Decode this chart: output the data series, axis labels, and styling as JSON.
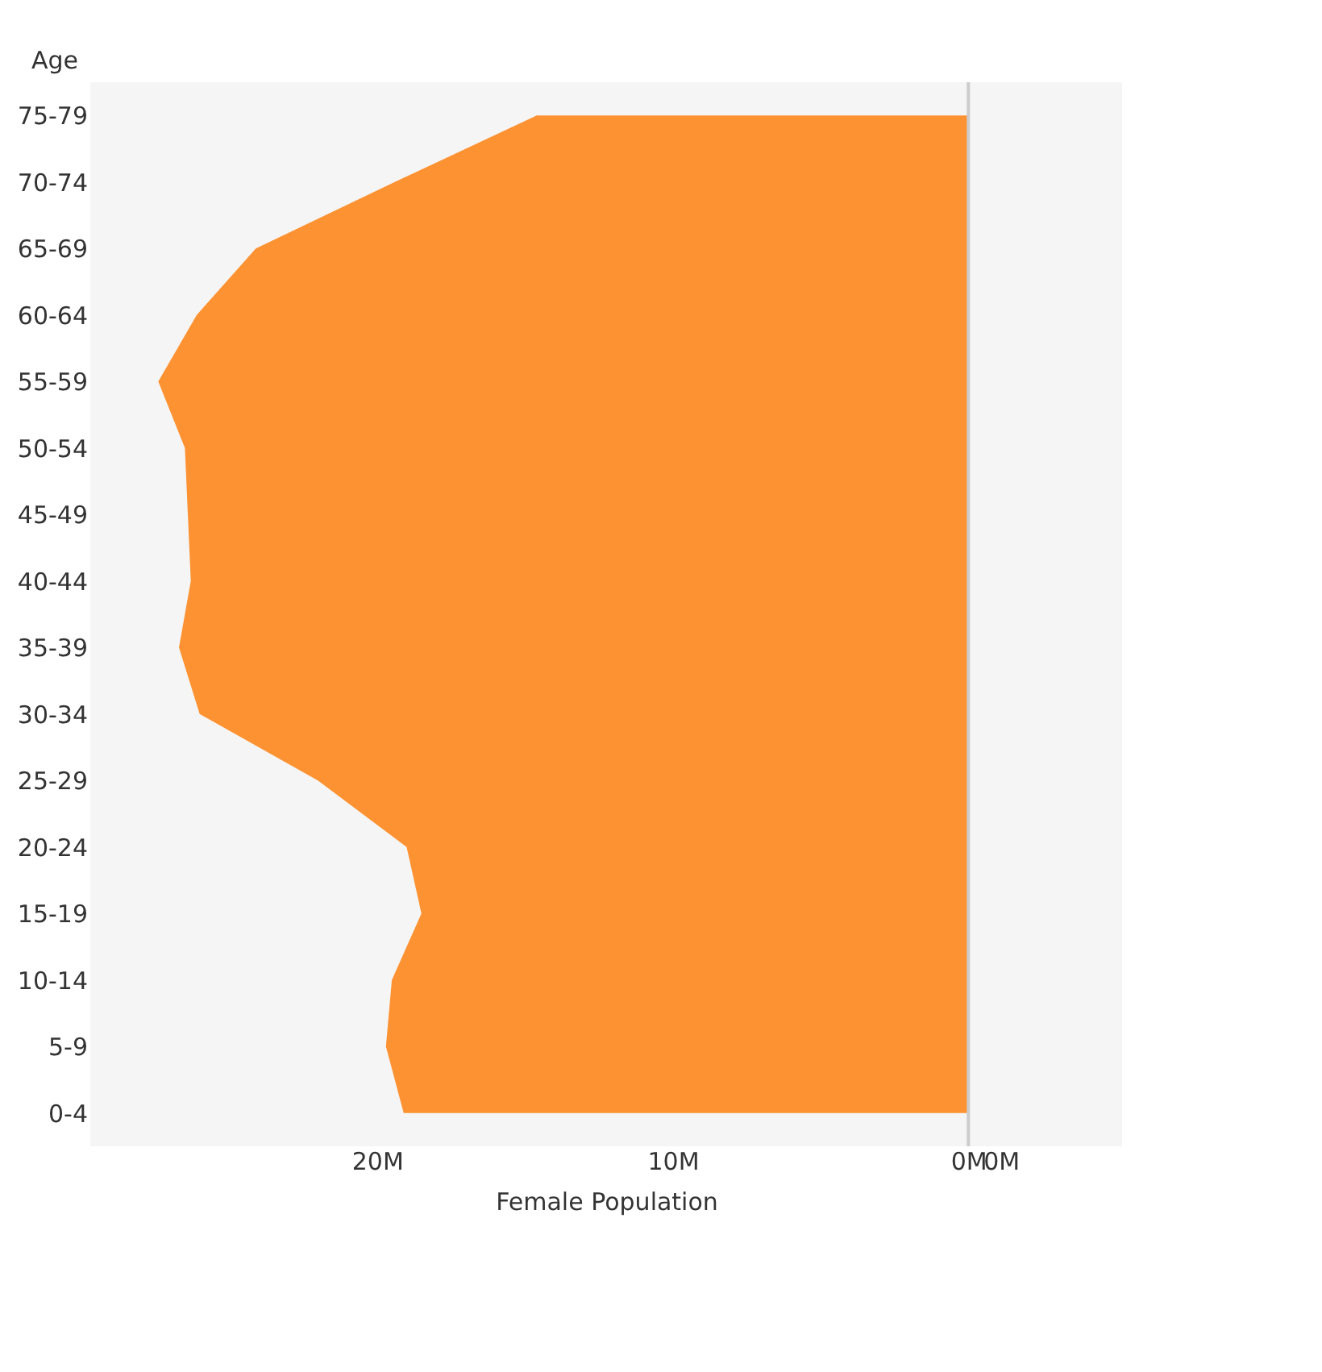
{
  "chart_data": {
    "type": "area",
    "orientation": "horizontal",
    "xlabel": "Female Population",
    "ylabel": "Age",
    "categories": [
      "75-79",
      "70-74",
      "65-69",
      "60-64",
      "55-59",
      "50-54",
      "45-49",
      "40-44",
      "35-39",
      "30-34",
      "25-29",
      "20-24",
      "15-19",
      "10-14",
      "5-9",
      "0-4"
    ],
    "series": [
      {
        "color": "#fd9232",
        "values": [
          14.6,
          19.4,
          24.1,
          26.1,
          27.4,
          26.5,
          26.4,
          26.3,
          26.7,
          26.0,
          22.0,
          19.0,
          18.5,
          19.5,
          19.7,
          19.1
        ]
      }
    ],
    "xlim": [
      29.7,
      -5.2
    ],
    "xticks": [
      {
        "value": 20,
        "label": "20M"
      },
      {
        "value": 10,
        "label": "10M"
      },
      {
        "value": 0,
        "label": "0M"
      },
      {
        "value": -1.1,
        "label": "0M"
      }
    ],
    "ref_lines": [
      {
        "axis": "x",
        "value": 0,
        "color": "#cccccc"
      }
    ],
    "grid": false
  }
}
